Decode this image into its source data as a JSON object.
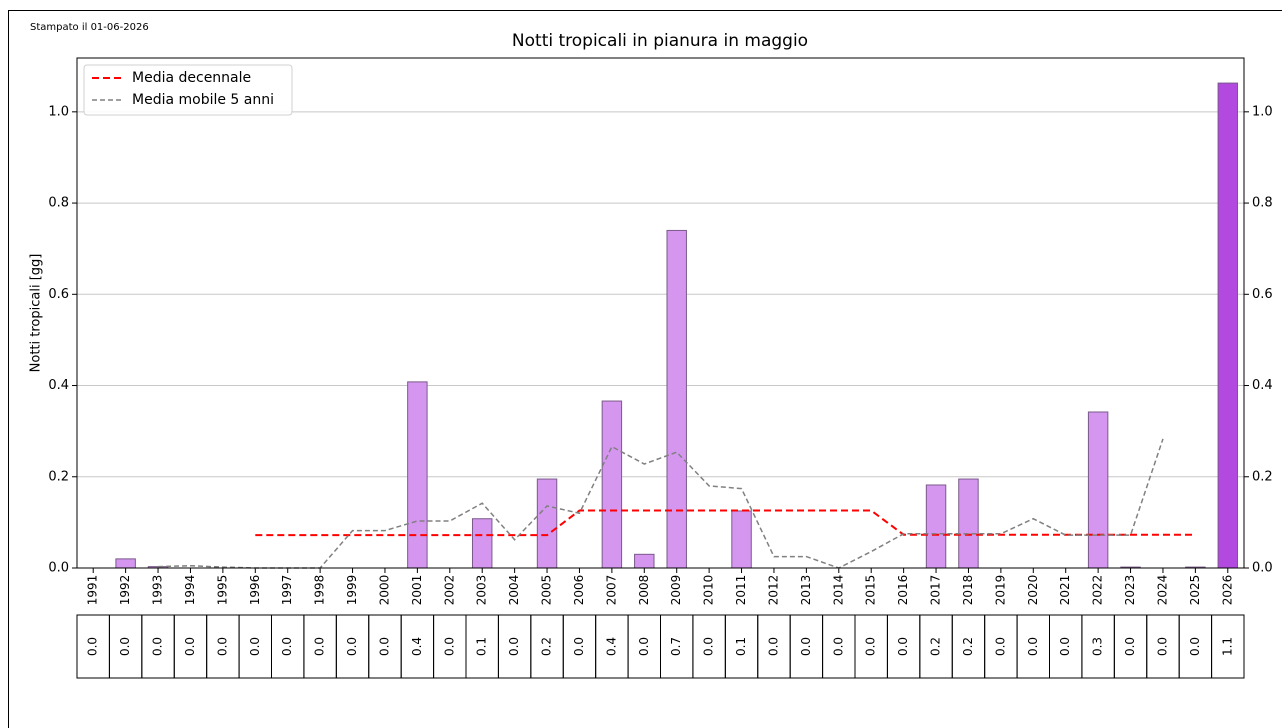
{
  "note_printed": "Stampato il 01-06-2026",
  "chart_data": {
    "type": "bar",
    "title": "Notti tropicali in pianura in maggio",
    "ylabel": "Notti tropicali [gg]",
    "categories": [
      "1991",
      "1992",
      "1993",
      "1994",
      "1995",
      "1996",
      "1997",
      "1998",
      "1999",
      "2000",
      "2001",
      "2002",
      "2003",
      "2004",
      "2005",
      "2006",
      "2007",
      "2008",
      "2009",
      "2010",
      "2011",
      "2012",
      "2013",
      "2014",
      "2015",
      "2016",
      "2017",
      "2018",
      "2019",
      "2020",
      "2021",
      "2022",
      "2023",
      "2024",
      "2025",
      "2026"
    ],
    "values": [
      0,
      0.02,
      0.003,
      0,
      0,
      0,
      0,
      0,
      0,
      0,
      0.408,
      0,
      0.108,
      0,
      0.195,
      0,
      0.366,
      0.03,
      0.74,
      0,
      0.125,
      0,
      0,
      0,
      0,
      0,
      0.182,
      0.195,
      0,
      0,
      0,
      0.342,
      0.002,
      0,
      0.002,
      1.063
    ],
    "value_labels": [
      "0.0",
      "0.0",
      "0.0",
      "0.0",
      "0.0",
      "0.0",
      "0.0",
      "0.0",
      "0.0",
      "0.0",
      "0.4",
      "0.0",
      "0.1",
      "0.0",
      "0.2",
      "0.0",
      "0.4",
      "0.0",
      "0.7",
      "0.0",
      "0.1",
      "0.0",
      "0.0",
      "0.0",
      "0.0",
      "0.0",
      "0.2",
      "0.2",
      "0.0",
      "0.0",
      "0.0",
      "0.3",
      "0.0",
      "0.0",
      "0.0",
      "1.1"
    ],
    "colors": [
      "#d596f0",
      "#d596f0",
      "#d596f0",
      "#d596f0",
      "#d596f0",
      "#d596f0",
      "#d596f0",
      "#d596f0",
      "#d596f0",
      "#d596f0",
      "#d596f0",
      "#d596f0",
      "#d596f0",
      "#d596f0",
      "#d596f0",
      "#d596f0",
      "#d596f0",
      "#d596f0",
      "#d596f0",
      "#d596f0",
      "#d596f0",
      "#d596f0",
      "#d596f0",
      "#d596f0",
      "#d596f0",
      "#d596f0",
      "#d596f0",
      "#d596f0",
      "#d596f0",
      "#d596f0",
      "#d596f0",
      "#d596f0",
      "#d596f0",
      "#d596f0",
      "#d596f0",
      "#b24ae0"
    ],
    "lines": [
      {
        "name": "Media decennale",
        "color": "#ff0000",
        "values": [
          null,
          null,
          null,
          null,
          null,
          0.072,
          0.072,
          0.072,
          0.072,
          0.072,
          0.072,
          0.072,
          0.072,
          0.072,
          0.072,
          0.126,
          0.126,
          0.126,
          0.126,
          0.126,
          0.126,
          0.126,
          0.126,
          0.126,
          0.126,
          0.073,
          0.073,
          0.073,
          0.073,
          0.073,
          0.073,
          0.073,
          0.073,
          0.073,
          0.073,
          null
        ]
      },
      {
        "name": "Media mobile 5 anni",
        "color": "#808080",
        "values": [
          null,
          null,
          0.003,
          0.005,
          0.002,
          0,
          0,
          0,
          0.082,
          0.082,
          0.103,
          0.103,
          0.142,
          0.062,
          0.136,
          0.12,
          0.266,
          0.228,
          0.254,
          0.18,
          0.174,
          0.025,
          0.025,
          0,
          0.036,
          0.075,
          0.075,
          0.075,
          0.075,
          0.108,
          0.072,
          0.072,
          0.072,
          0.283,
          null,
          null
        ]
      }
    ],
    "ylim": [
      0,
      1.118
    ],
    "yticks": [
      {
        "value": 0,
        "label": "0.0"
      },
      0.2,
      0.4,
      0.6,
      0.8,
      {
        "value": 1,
        "label": "1.0"
      }
    ],
    "grid": true,
    "legend": "upper left"
  }
}
